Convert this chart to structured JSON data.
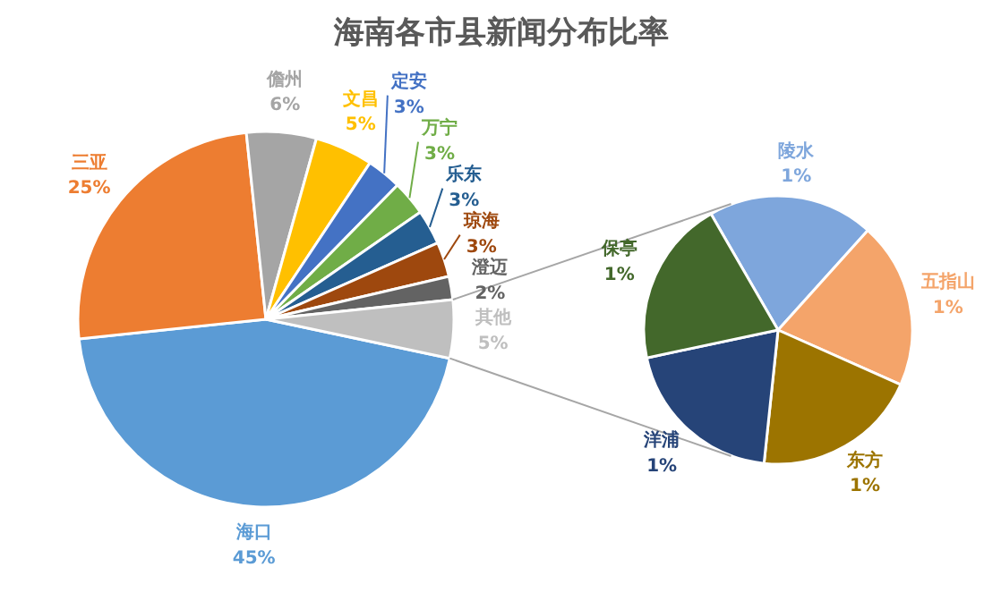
{
  "chart_data": [
    {
      "type": "pie",
      "title": "海南各市县新闻分布比率",
      "categories": [
        "海口",
        "三亚",
        "儋州",
        "文昌",
        "定安",
        "万宁",
        "乐东",
        "琼海",
        "澄迈",
        "其他"
      ],
      "values": [
        45,
        25,
        6,
        5,
        3,
        3,
        3,
        3,
        2,
        5
      ],
      "value_labels": [
        "45%",
        "25%",
        "6%",
        "5%",
        "3%",
        "3%",
        "3%",
        "3%",
        "2%",
        "5%"
      ],
      "colors": [
        "#5b9bd5",
        "#ed7d31",
        "#a5a5a5",
        "#ffc000",
        "#4472c4",
        "#70ad47",
        "#255e91",
        "#9e480e",
        "#636363",
        "#bfbfbf"
      ]
    },
    {
      "type": "pie",
      "categories": [
        "陵水",
        "五指山",
        "东方",
        "洋浦",
        "保亭"
      ],
      "values": [
        1,
        1,
        1,
        1,
        1
      ],
      "value_labels": [
        "1%",
        "1%",
        "1%",
        "1%",
        "1%"
      ],
      "colors": [
        "#7ea6dc",
        "#f4a46a",
        "#9c7400",
        "#264478",
        "#43682b"
      ]
    }
  ]
}
